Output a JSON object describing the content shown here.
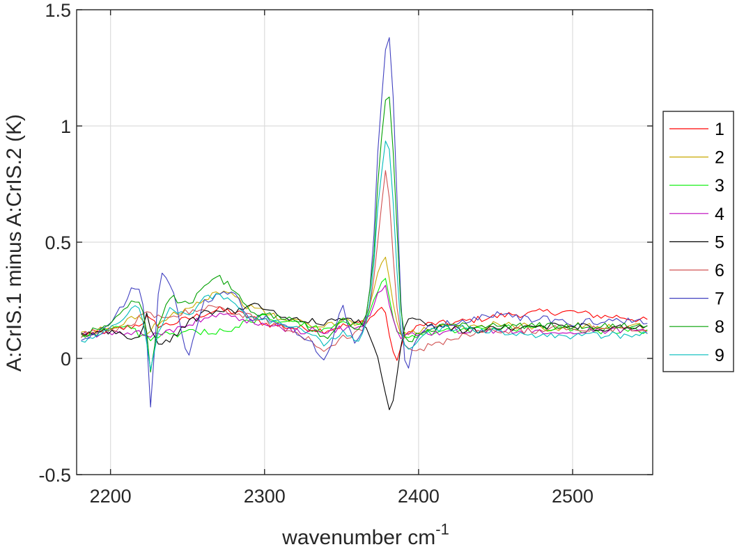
{
  "chart_data": {
    "type": "line",
    "title": "",
    "xlabel": "wavenumber cm",
    "xlabel_superscript": "-1",
    "ylabel": "A:CrIS.1 minus A:CrIS.2 (K)",
    "xlim": [
      2178,
      2552
    ],
    "ylim": [
      -0.5,
      1.5
    ],
    "xticks": [
      2200,
      2300,
      2400,
      2500
    ],
    "xtick_labels": [
      "2200",
      "2300",
      "2400",
      "2500"
    ],
    "yticks": [
      -0.5,
      0,
      0.5,
      1,
      1.5
    ],
    "ytick_labels": [
      "-0.5",
      "0",
      "0.5",
      "1",
      "1.5"
    ],
    "grid": true,
    "legend_position": "outside-right",
    "x_sample_start": 2181,
    "x_sample_step": 2.5,
    "anchor_x": [
      2181,
      2190,
      2200,
      2210,
      2215,
      2220,
      2224,
      2226,
      2232,
      2240,
      2250,
      2260,
      2270,
      2280,
      2290,
      2300,
      2310,
      2320,
      2330,
      2338,
      2345,
      2350,
      2355,
      2360,
      2365,
      2370,
      2374,
      2378,
      2380,
      2382,
      2385,
      2388,
      2392,
      2396,
      2400,
      2410,
      2420,
      2430,
      2440,
      2450,
      2460,
      2470,
      2480,
      2490,
      2500,
      2510,
      2520,
      2530,
      2540,
      2550
    ],
    "series": [
      {
        "name": "1",
        "color": "#ff0000",
        "anchors": [
          0.1,
          0.11,
          0.12,
          0.13,
          0.14,
          0.15,
          0.18,
          0.16,
          0.14,
          0.15,
          0.17,
          0.19,
          0.21,
          0.2,
          0.18,
          0.15,
          0.14,
          0.13,
          0.13,
          0.12,
          0.13,
          0.14,
          0.14,
          0.15,
          0.16,
          0.18,
          0.21,
          0.22,
          0.15,
          0.05,
          -0.02,
          0.04,
          0.1,
          0.13,
          0.14,
          0.15,
          0.15,
          0.16,
          0.17,
          0.18,
          0.19,
          0.19,
          0.2,
          0.2,
          0.2,
          0.19,
          0.18,
          0.18,
          0.17,
          0.16
        ]
      },
      {
        "name": "2",
        "color": "#c8a800",
        "anchors": [
          0.1,
          0.12,
          0.13,
          0.16,
          0.17,
          0.19,
          0.1,
          0.12,
          0.16,
          0.19,
          0.22,
          0.25,
          0.29,
          0.27,
          0.22,
          0.2,
          0.17,
          0.16,
          0.14,
          0.13,
          0.15,
          0.17,
          0.16,
          0.15,
          0.17,
          0.26,
          0.38,
          0.45,
          0.4,
          0.3,
          0.18,
          0.12,
          0.1,
          0.11,
          0.12,
          0.13,
          0.13,
          0.13,
          0.14,
          0.15,
          0.14,
          0.14,
          0.13,
          0.13,
          0.14,
          0.14,
          0.14,
          0.14,
          0.14,
          0.13
        ]
      },
      {
        "name": "3",
        "color": "#00ee00",
        "anchors": [
          0.1,
          0.11,
          0.13,
          0.14,
          0.12,
          0.1,
          0.09,
          0.09,
          0.1,
          0.1,
          0.11,
          0.11,
          0.12,
          0.13,
          0.16,
          0.18,
          0.16,
          0.15,
          0.14,
          0.12,
          0.14,
          0.16,
          0.15,
          0.14,
          0.16,
          0.22,
          0.3,
          0.36,
          0.31,
          0.22,
          0.14,
          0.1,
          0.09,
          0.1,
          0.1,
          0.11,
          0.12,
          0.12,
          0.12,
          0.13,
          0.13,
          0.13,
          0.13,
          0.13,
          0.13,
          0.12,
          0.12,
          0.12,
          0.12,
          0.12
        ]
      },
      {
        "name": "4",
        "color": "#bb00bb",
        "anchors": [
          0.1,
          0.1,
          0.11,
          0.11,
          0.11,
          0.11,
          0.1,
          0.1,
          0.11,
          0.12,
          0.14,
          0.17,
          0.19,
          0.18,
          0.16,
          0.14,
          0.13,
          0.12,
          0.12,
          0.12,
          0.12,
          0.13,
          0.13,
          0.13,
          0.15,
          0.21,
          0.28,
          0.31,
          0.28,
          0.2,
          0.13,
          0.1,
          0.09,
          0.1,
          0.11,
          0.11,
          0.12,
          0.12,
          0.12,
          0.12,
          0.12,
          0.12,
          0.12,
          0.12,
          0.12,
          0.12,
          0.12,
          0.12,
          0.12,
          0.12
        ]
      },
      {
        "name": "5",
        "color": "#000000",
        "anchors": [
          0.1,
          0.11,
          0.12,
          0.1,
          0.07,
          0.11,
          0.22,
          0.12,
          0.05,
          0.09,
          0.15,
          0.19,
          0.21,
          0.2,
          0.24,
          0.22,
          0.18,
          0.17,
          0.16,
          0.15,
          0.16,
          0.17,
          0.17,
          0.16,
          0.13,
          0.07,
          0.0,
          -0.12,
          -0.2,
          -0.25,
          -0.12,
          0.05,
          0.16,
          0.18,
          0.17,
          0.14,
          0.13,
          0.12,
          0.12,
          0.13,
          0.13,
          0.14,
          0.14,
          0.14,
          0.14,
          0.14,
          0.13,
          0.13,
          0.13,
          0.13
        ]
      },
      {
        "name": "6",
        "color": "#d05050",
        "anchors": [
          0.1,
          0.11,
          0.12,
          0.14,
          0.16,
          0.18,
          0.2,
          0.19,
          0.17,
          0.18,
          0.2,
          0.22,
          0.22,
          0.2,
          0.18,
          0.16,
          0.14,
          0.11,
          0.08,
          0.02,
          0.06,
          0.09,
          0.1,
          0.11,
          0.14,
          0.28,
          0.55,
          0.8,
          0.8,
          0.6,
          0.3,
          0.1,
          0.05,
          0.03,
          0.04,
          0.06,
          0.08,
          0.1,
          0.11,
          0.12,
          0.12,
          0.12,
          0.12,
          0.13,
          0.13,
          0.13,
          0.13,
          0.13,
          0.13,
          0.13
        ]
      },
      {
        "name": "7",
        "color": "#4040c0",
        "anchors": [
          0.08,
          0.1,
          0.15,
          0.25,
          0.31,
          0.28,
          0.05,
          -0.2,
          0.38,
          0.3,
          0.0,
          0.24,
          0.27,
          0.3,
          0.16,
          0.18,
          0.14,
          0.12,
          0.08,
          -0.03,
          0.1,
          0.25,
          0.12,
          0.06,
          0.12,
          0.4,
          0.95,
          1.3,
          1.39,
          1.36,
          0.9,
          0.3,
          -0.1,
          0.05,
          0.1,
          0.14,
          0.15,
          0.16,
          0.18,
          0.19,
          0.18,
          0.17,
          0.17,
          0.16,
          0.15,
          0.16,
          0.16,
          0.16,
          0.16,
          0.16
        ]
      },
      {
        "name": "8",
        "color": "#00a000",
        "anchors": [
          0.1,
          0.12,
          0.16,
          0.22,
          0.25,
          0.22,
          0.1,
          -0.05,
          0.18,
          0.26,
          0.23,
          0.3,
          0.35,
          0.3,
          0.2,
          0.19,
          0.18,
          0.16,
          0.13,
          0.08,
          0.12,
          0.18,
          0.14,
          0.12,
          0.15,
          0.35,
          0.8,
          1.1,
          1.14,
          1.1,
          0.7,
          0.25,
          0.05,
          0.08,
          0.11,
          0.13,
          0.14,
          0.14,
          0.14,
          0.14,
          0.14,
          0.14,
          0.14,
          0.14,
          0.14,
          0.14,
          0.14,
          0.14,
          0.14,
          0.14
        ]
      },
      {
        "name": "9",
        "color": "#00bbbb",
        "anchors": [
          0.06,
          0.09,
          0.14,
          0.18,
          0.22,
          0.2,
          0.05,
          -0.06,
          0.14,
          0.22,
          0.18,
          0.25,
          0.28,
          0.24,
          0.17,
          0.16,
          0.15,
          0.13,
          0.11,
          0.06,
          0.08,
          0.12,
          0.1,
          0.08,
          0.12,
          0.3,
          0.7,
          0.92,
          0.93,
          0.85,
          0.5,
          0.15,
          0.03,
          0.06,
          0.09,
          0.12,
          0.13,
          0.13,
          0.12,
          0.12,
          0.11,
          0.1,
          0.1,
          0.09,
          0.09,
          0.1,
          0.1,
          0.1,
          0.1,
          0.1
        ]
      }
    ]
  }
}
